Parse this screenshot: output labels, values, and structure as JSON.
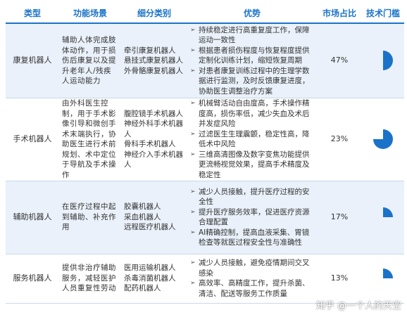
{
  "headers": [
    "类型",
    "功能场景",
    "细分类别",
    "优势",
    "市场占比",
    "技术门槛"
  ],
  "rows": [
    {
      "type": "康复机器人",
      "scene": "辅助人体完成肢体动作，用于损伤后康复以及提升老年人/残疾人运动能力",
      "subcats": [
        "牵引康复机器人",
        "悬挂式康复机器人",
        "外骨骼康复机器人"
      ],
      "advantages": [
        "持续稳定进行高重复度工作，保障运动一致性",
        "根据患者损伤程度与恢复程度提供定制化训练计划，缩短恢复周期",
        "对患者康复训练过程中的生理学数据进行监测，及时反馈康复进度，协助医生调整治疗方案"
      ],
      "share": "47%",
      "threshold_level": 0.5
    },
    {
      "type": "手术机器人",
      "scene": "由外科医生控制，用于手术影像引导和微创手术末端执行，协助医生进行术前规划、术中定位于导航及手术操作",
      "subcats": [
        "腹腔镜手术机器人",
        "神经外科手术机器人",
        "骨科手术机器人",
        "神经介入手术机器人"
      ],
      "advantages": [
        "机械臂活动自由度高，手术操作精度高，损伤率低，减少失血及术后并发症风险",
        "过滤医生生理震颤，稳定性高，降低术中风险",
        "三维高清图像及数字变焦功能提供更流畅视觉效果，提高手术精度及稳定性"
      ],
      "share": "23%",
      "threshold_level": 0.75
    },
    {
      "type": "辅助机器人",
      "scene": "在医疗过程中起到辅助、补充作用",
      "subcats": [
        "胶囊机器人",
        "采血机器人",
        "远程医疗机器人"
      ],
      "advantages": [
        "减少人员接触，提升医疗过程的安全性",
        "提升医疗服务效率，促进医疗资源合理配置",
        "AI精确控制，提高血液采集、胃镜检查等就医过程安全性与准确性"
      ],
      "share": "17%",
      "threshold_level": 0.25
    },
    {
      "type": "服务机器人",
      "scene": "提供非治疗辅助服务，减轻医护人员重复性劳动",
      "subcats": [
        "医用运输机器人",
        "杀毒消菌机器人",
        "配药机器人"
      ],
      "advantages": [
        "减少人员接触，避免疫情期间交叉感染",
        "高效率、高精度工作，提升杀菌、清洁、配送等服务工作质量"
      ],
      "share": "13%",
      "threshold_level": 0.25
    }
  ],
  "watermark": "知乎 @一个人的天空",
  "colors": {
    "accent": "#1a73c8",
    "band": "#eaf1fa"
  }
}
